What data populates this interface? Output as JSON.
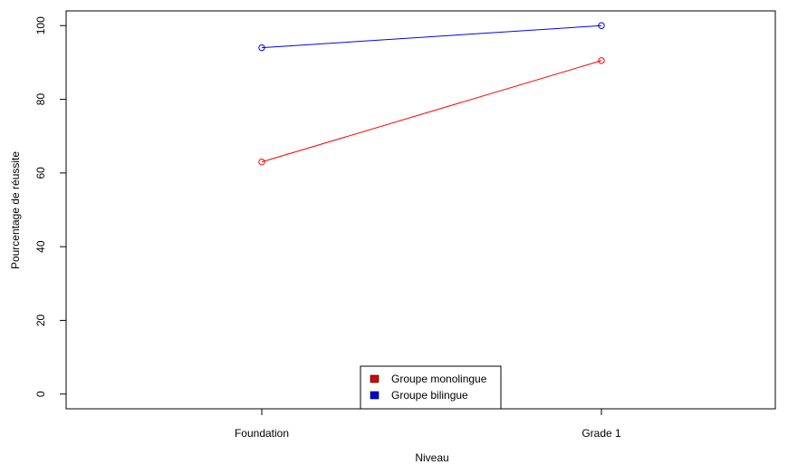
{
  "chart_data": {
    "type": "line",
    "title": "",
    "xlabel": "Niveau",
    "ylabel": "Pourcentage de réussite",
    "categories": [
      "Foundation",
      "Grade 1"
    ],
    "ylim": [
      -4,
      104
    ],
    "yticks": [
      0,
      20,
      40,
      60,
      80,
      100
    ],
    "grid": false,
    "legend_position": "bottom-center",
    "series": [
      {
        "name": "Groupe monolingue",
        "color": "#ff0000",
        "values": [
          63,
          90.5
        ]
      },
      {
        "name": "Groupe bilingue",
        "color": "#0000ff",
        "values": [
          94,
          100
        ]
      }
    ]
  }
}
